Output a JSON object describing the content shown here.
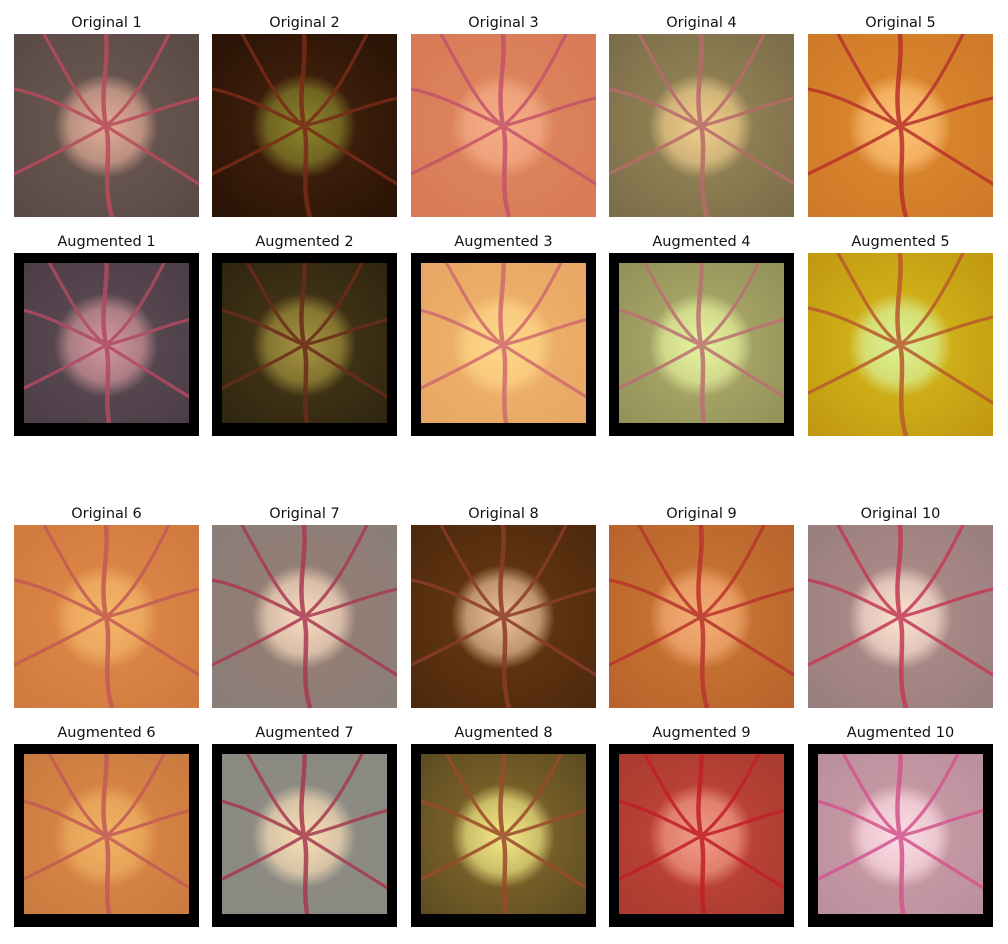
{
  "figure": {
    "panels": [
      {
        "id": "o1",
        "title": "Original 1",
        "tone": {
          "bg": "#6f5b55",
          "disc": "#e7b09a",
          "edge": "#5a4a46",
          "vessel": "#b84b5a",
          "border": false
        }
      },
      {
        "id": "o2",
        "title": "Original 2",
        "tone": {
          "bg": "#4a2410",
          "disc": "#8b8a2c",
          "edge": "#2a1405",
          "vessel": "#7a2a18",
          "border": false
        }
      },
      {
        "id": "o3",
        "title": "Original 3",
        "tone": {
          "bg": "#df8a60",
          "disc": "#f7b08a",
          "edge": "#d77a57",
          "vessel": "#c4536a",
          "border": false
        }
      },
      {
        "id": "o4",
        "title": "Original 4",
        "tone": {
          "bg": "#9b8a58",
          "disc": "#f4d08e",
          "edge": "#7c6e4a",
          "vessel": "#b86a6a",
          "border": false
        }
      },
      {
        "id": "o5",
        "title": "Original 5",
        "tone": {
          "bg": "#df8a30",
          "disc": "#ffc57a",
          "edge": "#cf7a28",
          "vessel": "#b9322c",
          "border": false
        }
      },
      {
        "id": "a1",
        "title": "Augmented 1",
        "tone": {
          "bg": "#5e4d55",
          "disc": "#d99aa0",
          "edge": "#4b3c45",
          "vessel": "#b14b62",
          "border": true
        }
      },
      {
        "id": "a2",
        "title": "Augmented 2",
        "tone": {
          "bg": "#4a3a18",
          "disc": "#a99840",
          "edge": "#2d2410",
          "vessel": "#6a2c1a",
          "border": true
        }
      },
      {
        "id": "a3",
        "title": "Augmented 3",
        "tone": {
          "bg": "#f0b46a",
          "disc": "#ffd98a",
          "edge": "#e6a665",
          "vessel": "#d06a70",
          "border": true
        }
      },
      {
        "id": "a4",
        "title": "Augmented 4",
        "tone": {
          "bg": "#b3b06c",
          "disc": "#e8f7a0",
          "edge": "#8f8f58",
          "vessel": "#bb6f74",
          "border": true
        }
      },
      {
        "id": "a5",
        "title": "Augmented 5",
        "tone": {
          "bg": "#d7bd1e",
          "disc": "#d9f5a0",
          "edge": "#c29a12",
          "vessel": "#b95a2c",
          "border": false
        }
      },
      {
        "id": "o6",
        "title": "Original 6",
        "tone": {
          "bg": "#e08d4a",
          "disc": "#f4b86a",
          "edge": "#d17a40",
          "vessel": "#c45a55",
          "border": false
        }
      },
      {
        "id": "o7",
        "title": "Original 7",
        "tone": {
          "bg": "#9a7f74",
          "disc": "#ffe0c4",
          "edge": "#8a7e78",
          "vessel": "#a93a52",
          "border": false
        }
      },
      {
        "id": "o8",
        "title": "Original 8",
        "tone": {
          "bg": "#6b3a14",
          "disc": "#f2c9a0",
          "edge": "#4e2a0d",
          "vessel": "#8c3b2a",
          "border": false
        }
      },
      {
        "id": "o9",
        "title": "Original 9",
        "tone": {
          "bg": "#cf7a36",
          "disc": "#f7b07a",
          "edge": "#b8642c",
          "vessel": "#b9342c",
          "border": false
        }
      },
      {
        "id": "o10",
        "title": "Original 10",
        "tone": {
          "bg": "#b38e8a",
          "disc": "#ffe6d4",
          "edge": "#9a7f80",
          "vessel": "#c43a52",
          "border": false
        }
      },
      {
        "id": "a6",
        "title": "Augmented 6",
        "tone": {
          "bg": "#de8a48",
          "disc": "#f0b464",
          "edge": "#c87a3f",
          "vessel": "#c35a56",
          "border": true
        }
      },
      {
        "id": "a7",
        "title": "Augmented 7",
        "tone": {
          "bg": "#8d8b86",
          "disc": "#ffe2b8",
          "edge": "#8a8a80",
          "vessel": "#a63a4f",
          "border": true
        }
      },
      {
        "id": "a8",
        "title": "Augmented 8",
        "tone": {
          "bg": "#8b6d2d",
          "disc": "#f8f08c",
          "edge": "#5a4a20",
          "vessel": "#9a4a2a",
          "border": true
        }
      },
      {
        "id": "a9",
        "title": "Augmented 9",
        "tone": {
          "bg": "#c8463a",
          "disc": "#f2a08a",
          "edge": "#a63a2f",
          "vessel": "#c11e2a",
          "border": true
        }
      },
      {
        "id": "a10",
        "title": "Augmented 10",
        "tone": {
          "bg": "#cf9ca8",
          "disc": "#ffe0e8",
          "edge": "#b88f9c",
          "vessel": "#d3558e",
          "border": true
        }
      }
    ]
  }
}
